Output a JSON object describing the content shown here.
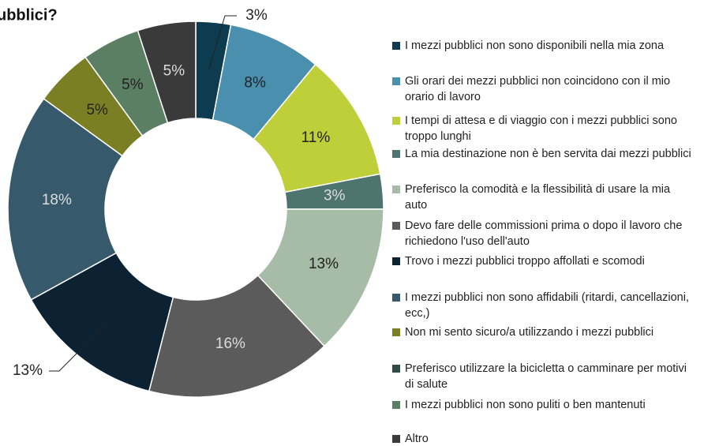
{
  "chart_data": {
    "type": "donut",
    "title": "ubblici?",
    "categories": [
      "I mezzi pubblici non sono disponibili nella mia zona",
      "Gli orari dei mezzi pubblici non coincidono con il mio orario di lavoro",
      "I tempi di attesa e di viaggio con i mezzi pubblici sono troppo lunghi",
      "La mia destinazione non è ben servita dai mezzi pubblici",
      "Preferisco la comodità e la flessibilità di usare la mia auto",
      "Devo fare delle commissioni prima o dopo il lavoro che richiedono l'uso dell'auto",
      "Trovo i mezzi pubblici troppo affollati e scomodi",
      "I mezzi pubblici non sono affidabili (ritardi, cancellazioni, ecc,)",
      "Non mi sento sicuro/a utilizzando i mezzi pubblici",
      "Preferisco utilizzare la bicicletta o camminare per motivi di salute",
      "I mezzi pubblici non sono puliti o ben mantenuti",
      "Altro"
    ],
    "values": [
      3,
      8,
      11,
      3,
      13,
      16,
      13,
      18,
      5,
      0,
      5,
      5
    ],
    "value_labels": [
      "3%",
      "8%",
      "11%",
      "3%",
      "13%",
      "16%",
      "13%",
      "18%",
      "5%",
      null,
      "5%",
      "5%"
    ],
    "colors": [
      "#0d3b4f",
      "#4a8fad",
      "#bfcf3a",
      "#4e7470",
      "#a7bca6",
      "#5b5b5b",
      "#0c2233",
      "#365a6b",
      "#7a7f23",
      "#2f4a43",
      "#5a7f62",
      "#3a3a3a"
    ]
  }
}
